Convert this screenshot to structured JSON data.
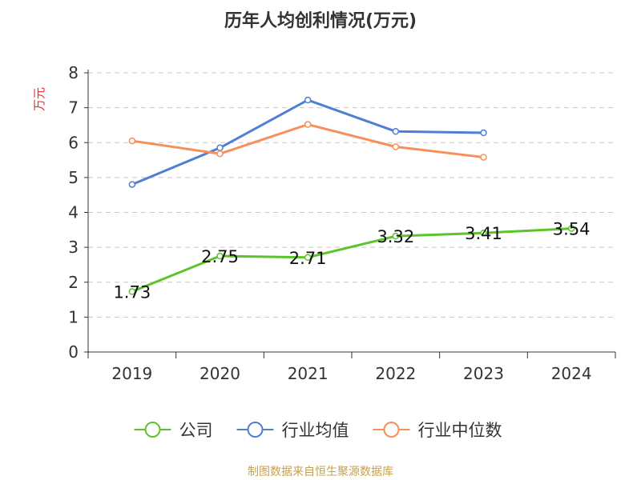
{
  "chart_data": {
    "type": "line",
    "title": "历年人均创利情况(万元)",
    "ylabel": "万元",
    "categories": [
      "2019",
      "2020",
      "2021",
      "2022",
      "2023",
      "2024"
    ],
    "ylim": [
      0,
      8
    ],
    "yticks": [
      "0",
      "1",
      "2",
      "3",
      "4",
      "5",
      "6",
      "7",
      "8"
    ],
    "grid": true,
    "legend_position": "bottom",
    "series": [
      {
        "name": "公司",
        "color": "#5cc42b",
        "values": [
          1.73,
          2.75,
          2.71,
          3.32,
          3.41,
          3.54
        ],
        "labels": [
          "1.73",
          "2.75",
          "2.71",
          "3.32",
          "3.41",
          "3.54"
        ],
        "show_labels": true
      },
      {
        "name": "行业均值",
        "color": "#4f7fd4",
        "values": [
          4.8,
          5.85,
          7.22,
          6.32,
          6.28,
          null
        ],
        "show_labels": false
      },
      {
        "name": "行业中位数",
        "color": "#f5905a",
        "values": [
          6.05,
          5.68,
          6.52,
          5.88,
          5.58,
          null
        ],
        "show_labels": false
      }
    ]
  },
  "source_text": "制图数据来自恒生聚源数据库",
  "ylabel_color": "#e0302a"
}
